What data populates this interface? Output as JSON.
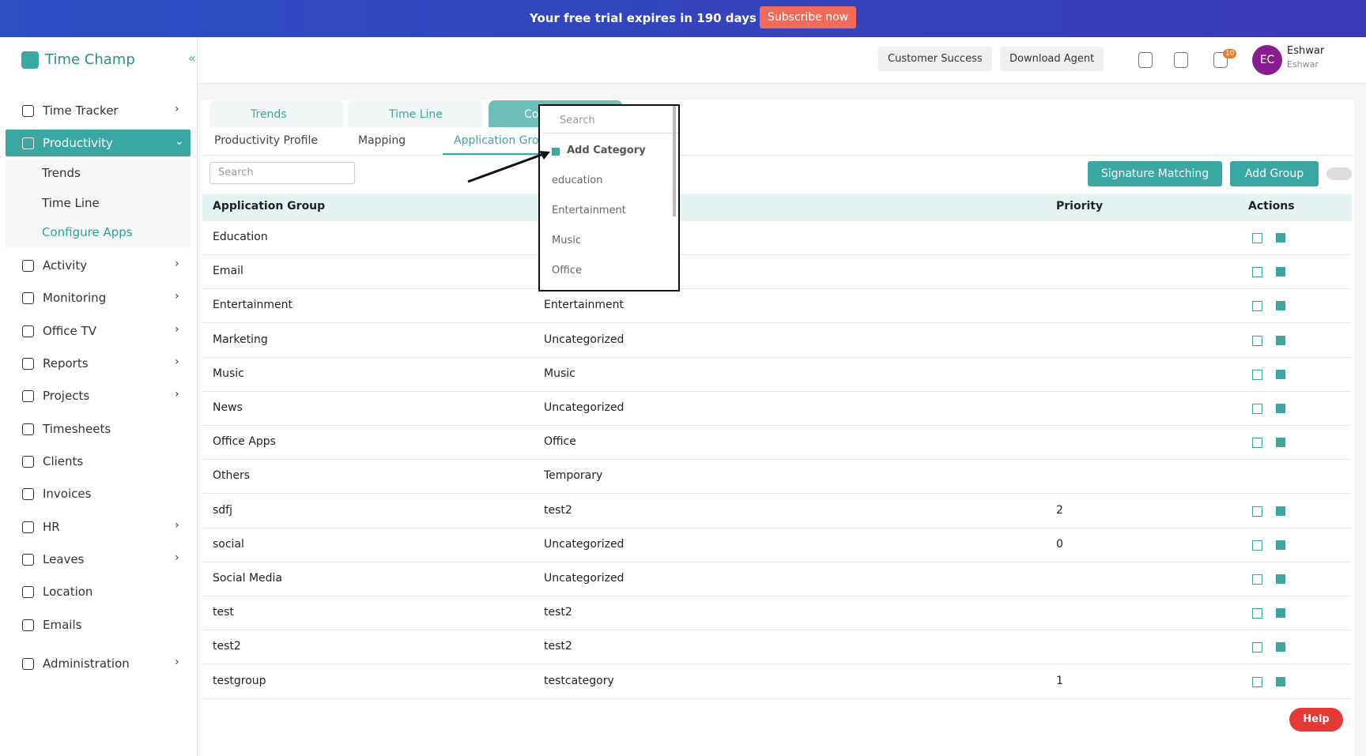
{
  "banner": {
    "text": "Your free trial expires in 190 days",
    "button": "Subscribe now"
  },
  "header": {
    "brand": "Time Champ",
    "buttons": [
      "Customer Success",
      "Download Agent"
    ],
    "notifications": "10",
    "user": {
      "initials": "EC",
      "name": "Eshwar",
      "role": "Eshwar"
    }
  },
  "sidebar": {
    "items": [
      {
        "label": "Time Tracker",
        "expandable": true
      },
      {
        "label": "Productivity",
        "expandable": true,
        "active": true,
        "children": [
          "Trends",
          "Time Line",
          "Configure Apps"
        ]
      },
      {
        "label": "Activity",
        "expandable": true
      },
      {
        "label": "Monitoring",
        "expandable": true
      },
      {
        "label": "Office TV",
        "expandable": true
      },
      {
        "label": "Reports",
        "expandable": true
      },
      {
        "label": "Projects",
        "expandable": true
      },
      {
        "label": "Timesheets",
        "expandable": false
      },
      {
        "label": "Clients",
        "expandable": false
      },
      {
        "label": "Invoices",
        "expandable": false
      },
      {
        "label": "HR",
        "expandable": true
      },
      {
        "label": "Leaves",
        "expandable": true
      },
      {
        "label": "Location",
        "expandable": false
      },
      {
        "label": "Emails",
        "expandable": false
      },
      {
        "label": "Administration",
        "expandable": true
      }
    ]
  },
  "tabs": [
    "Trends",
    "Time Line",
    "Co"
  ],
  "subtabs": [
    "Productivity Profile",
    "Mapping",
    "Application Groups"
  ],
  "toolbar": {
    "search": "Search",
    "buttons": [
      "Signature Matching",
      "Add Group"
    ]
  },
  "table": {
    "group_header": "Application Group",
    "priority_header": "Priority",
    "actions_header": "Actions",
    "rows": [
      [
        "Education",
        null,
        null,
        true
      ],
      [
        "Email",
        null,
        null,
        true
      ],
      [
        "Entertainment",
        "Entertainment",
        null,
        true
      ],
      [
        "Marketing",
        "Uncategorized",
        null,
        true
      ],
      [
        "Music",
        "Music",
        null,
        true
      ],
      [
        "News",
        "Uncategorized",
        null,
        true
      ],
      [
        "Office Apps",
        "Office",
        null,
        true
      ],
      [
        "Others",
        "Temporary",
        null,
        false
      ],
      [
        "sdfj",
        "test2",
        "2",
        true
      ],
      [
        "social",
        "Uncategorized",
        "0",
        true
      ],
      [
        "Social Media",
        "Uncategorized",
        null,
        true
      ],
      [
        "test",
        "test2",
        null,
        true
      ],
      [
        "test2",
        "test2",
        null,
        true
      ],
      [
        "testgroup",
        "testcategory",
        "1",
        true
      ]
    ]
  },
  "dropdown": {
    "search": "Search",
    "add": "Add Category",
    "options": [
      "education",
      "Entertainment",
      "Music",
      "Office"
    ]
  },
  "help": "Help"
}
